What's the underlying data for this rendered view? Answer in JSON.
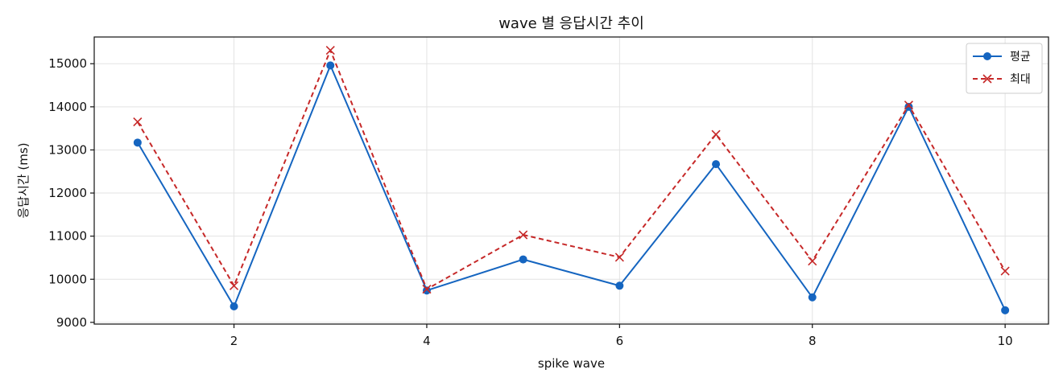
{
  "chart_data": {
    "type": "line",
    "title": "wave 별 응답시간 추이",
    "xlabel": "spike wave",
    "ylabel": "응답시간 (ms)",
    "x": [
      1,
      2,
      3,
      4,
      5,
      6,
      7,
      8,
      9,
      10
    ],
    "xlim": [
      0.55,
      10.45
    ],
    "ylim": [
      8960,
      15620
    ],
    "xticks": [
      2,
      4,
      6,
      8,
      10
    ],
    "yticks": [
      9000,
      10000,
      11000,
      12000,
      13000,
      14000,
      15000
    ],
    "grid": true,
    "legend_position": "top-right",
    "series": [
      {
        "name": "평균",
        "color": "#1565c0",
        "line_style": "solid",
        "marker": "circle",
        "values": [
          13170,
          9370,
          14960,
          9740,
          10460,
          9850,
          12670,
          9580,
          14000,
          9280
        ]
      },
      {
        "name": "최대",
        "color": "#c62828",
        "line_style": "dashed",
        "marker": "x",
        "values": [
          13650,
          9850,
          15310,
          9770,
          11030,
          10510,
          13360,
          10420,
          14040,
          10190
        ]
      }
    ]
  }
}
